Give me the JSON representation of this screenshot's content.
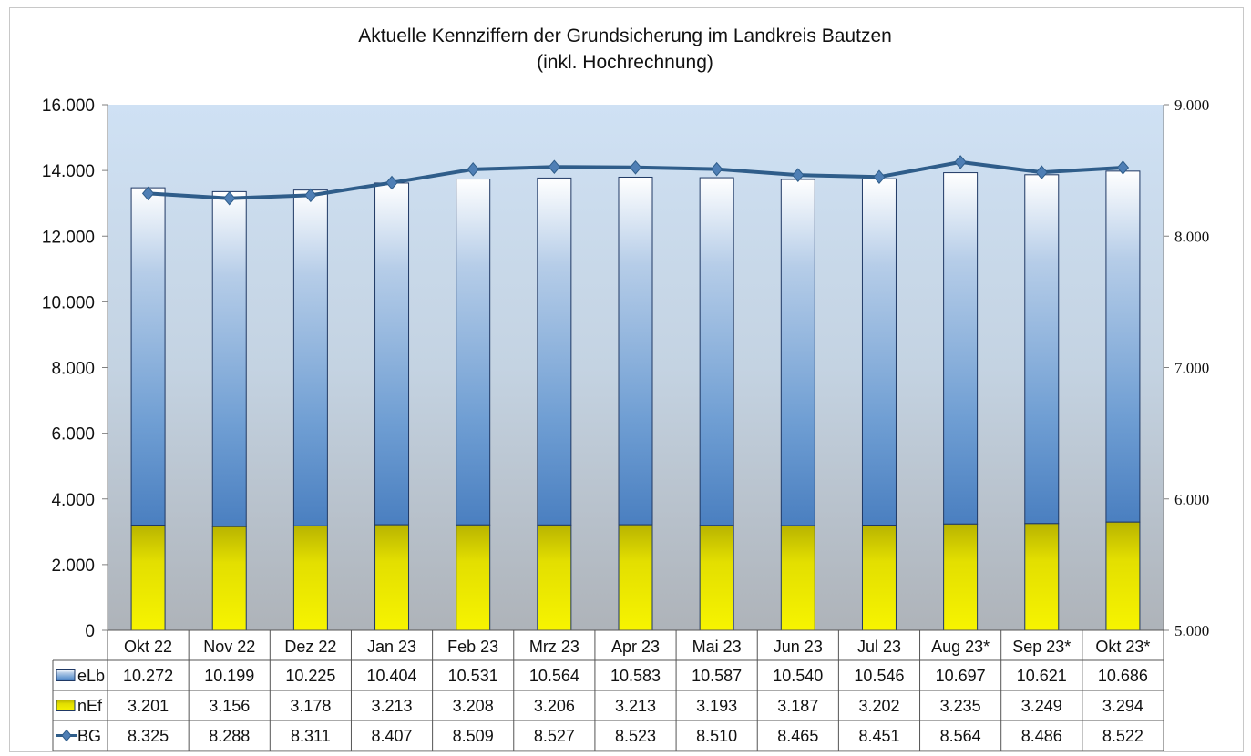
{
  "chart_data": {
    "type": "bar",
    "title": "Aktuelle Kennziffern der Grundsicherung im Landkreis Bautzen",
    "subtitle": "(inkl. Hochrechnung)",
    "categories": [
      "Okt 22",
      "Nov 22",
      "Dez 22",
      "Jan 23",
      "Feb 23",
      "Mrz 23",
      "Apr 23",
      "Mai 23",
      "Jun 23",
      "Jul 23",
      "Aug 23*",
      "Sep 23*",
      "Okt 23*"
    ],
    "series": [
      {
        "name": "eLb",
        "kind": "stacked-bar",
        "axis": "left",
        "color": "#4f81bd",
        "values": [
          10272,
          10199,
          10225,
          10404,
          10531,
          10564,
          10583,
          10587,
          10540,
          10546,
          10697,
          10621,
          10686
        ],
        "labels": [
          "10.272",
          "10.199",
          "10.225",
          "10.404",
          "10.531",
          "10.564",
          "10.583",
          "10.587",
          "10.540",
          "10.546",
          "10.697",
          "10.621",
          "10.686"
        ]
      },
      {
        "name": "nEf",
        "kind": "stacked-bar",
        "axis": "left",
        "color": "#f2ee00",
        "values": [
          3201,
          3156,
          3178,
          3213,
          3208,
          3206,
          3213,
          3193,
          3187,
          3202,
          3235,
          3249,
          3294
        ],
        "labels": [
          "3.201",
          "3.156",
          "3.178",
          "3.213",
          "3.208",
          "3.206",
          "3.213",
          "3.193",
          "3.187",
          "3.202",
          "3.235",
          "3.249",
          "3.294"
        ]
      },
      {
        "name": "BG",
        "kind": "line",
        "axis": "right",
        "color": "#2f5d8a",
        "values": [
          8325,
          8288,
          8311,
          8407,
          8509,
          8527,
          8523,
          8510,
          8465,
          8451,
          8564,
          8486,
          8522
        ],
        "labels": [
          "8.325",
          "8.288",
          "8.311",
          "8.407",
          "8.509",
          "8.527",
          "8.523",
          "8.510",
          "8.465",
          "8.451",
          "8.564",
          "8.486",
          "8.522"
        ]
      }
    ],
    "ylim": [
      0,
      16000
    ],
    "yticks": [
      {
        "v": 0,
        "label": "0"
      },
      {
        "v": 2000,
        "label": "2.000"
      },
      {
        "v": 4000,
        "label": "4.000"
      },
      {
        "v": 6000,
        "label": "6.000"
      },
      {
        "v": 8000,
        "label": "8.000"
      },
      {
        "v": 10000,
        "label": "10.000"
      },
      {
        "v": 12000,
        "label": "12.000"
      },
      {
        "v": 14000,
        "label": "14.000"
      },
      {
        "v": 16000,
        "label": "16.000"
      }
    ],
    "y2lim": [
      5000,
      9000
    ],
    "y2ticks": [
      {
        "v": 5000,
        "label": "5.000"
      },
      {
        "v": 6000,
        "label": "6.000"
      },
      {
        "v": 7000,
        "label": "7.000"
      },
      {
        "v": 8000,
        "label": "8.000"
      },
      {
        "v": 9000,
        "label": "9.000"
      }
    ],
    "legend": "data-table",
    "grid": false
  }
}
